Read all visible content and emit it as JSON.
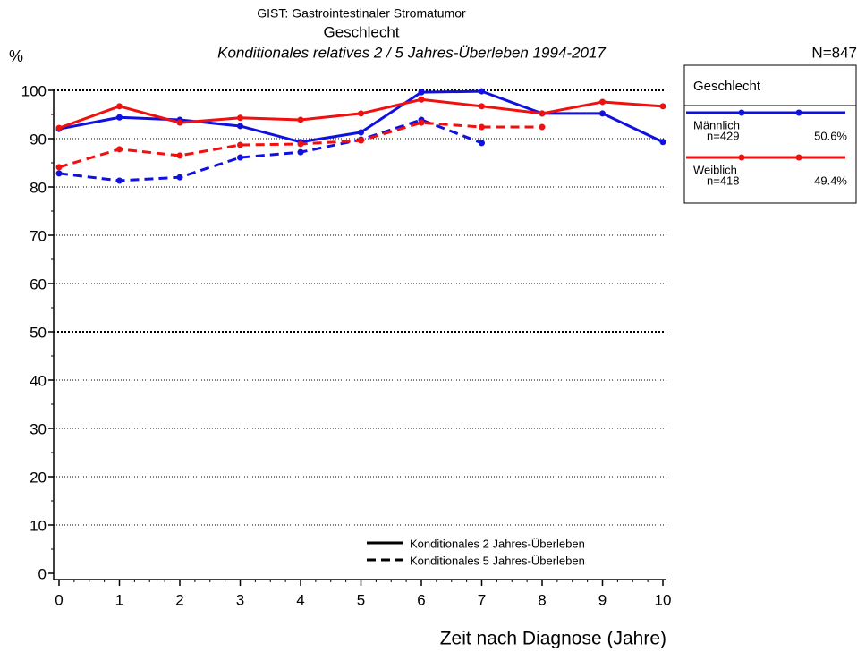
{
  "chart_data": {
    "type": "line",
    "title": "GIST: Gastrointestinaler Stromatumor",
    "subtitle": "Geschlecht",
    "subtitle2": "Konditionales relatives 2 / 5 Jahres-Überleben 1994-2017",
    "total": "N=847",
    "ylabel": "%",
    "xlabel": "Zeit nach Diagnose (Jahre)",
    "x": [
      0,
      1,
      2,
      3,
      4,
      5,
      6,
      7,
      8,
      9,
      10
    ],
    "xlim": [
      0,
      10
    ],
    "xticks": [
      0,
      1,
      2,
      3,
      4,
      5,
      6,
      7,
      8,
      9,
      10
    ],
    "ylim": [
      0,
      100
    ],
    "yticks": [
      0,
      10,
      20,
      30,
      40,
      50,
      60,
      70,
      80,
      90,
      100
    ],
    "grid": true,
    "legend_title": "Geschlecht",
    "line_styles": [
      "Konditionales 2 Jahres-Überleben",
      "Konditionales 5 Jahres-Überleben"
    ],
    "series": [
      {
        "name": "Männlich",
        "color": "#1010e0",
        "n_label": "n=429",
        "share_label": "50.6%",
        "values": [
          92.0,
          94.4,
          93.9,
          92.6,
          89.3,
          91.3,
          99.6,
          99.8,
          95.2,
          95.2,
          89.3
        ],
        "values_5": [
          82.8,
          81.3,
          82.0,
          86.1,
          87.2,
          89.8,
          93.9,
          89.1,
          null,
          null,
          null
        ]
      },
      {
        "name": "Weiblich",
        "color": "#f01010",
        "n_label": "n=418",
        "share_label": "49.4%",
        "values": [
          92.2,
          96.7,
          93.3,
          94.3,
          93.9,
          95.2,
          98.1,
          96.7,
          95.2,
          97.6,
          96.7
        ],
        "values_5": [
          84.1,
          87.8,
          86.5,
          88.7,
          88.9,
          89.6,
          93.3,
          92.4,
          92.4,
          null,
          null
        ]
      }
    ]
  }
}
